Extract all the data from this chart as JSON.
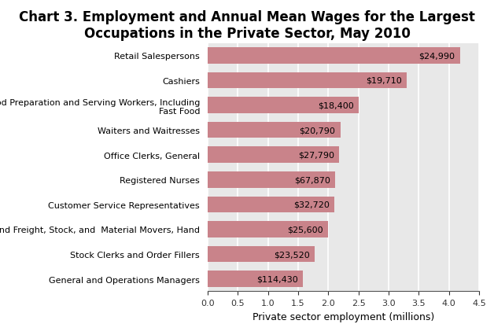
{
  "title": "Chart 3. Employment and Annual Mean Wages for the Largest\nOccupations in the Private Sector, May 2010",
  "categories": [
    "Retail Salespersons",
    "Cashiers",
    "Combined Food Preparation and Serving Workers, Including\nFast Food",
    "Waiters and Waitresses",
    "Office Clerks, General",
    "Registered Nurses",
    "Customer Service Representatives",
    "Laborers and Freight, Stock, and  Material Movers, Hand",
    "Stock Clerks and Order Fillers",
    "General and Operations Managers"
  ],
  "employment": [
    4.18,
    3.3,
    2.5,
    2.2,
    2.18,
    2.12,
    2.1,
    2.0,
    1.78,
    1.58
  ],
  "wages": [
    "$24,990",
    "$19,710",
    "$18,400",
    "$20,790",
    "$27,790",
    "$67,870",
    "$32,720",
    "$25,600",
    "$23,520",
    "$114,430"
  ],
  "bar_color": "#c9838a",
  "xlabel": "Private sector employment (millions)",
  "xlim": [
    0,
    4.5
  ],
  "xticks": [
    0.0,
    0.5,
    1.0,
    1.5,
    2.0,
    2.5,
    3.0,
    3.5,
    4.0,
    4.5
  ],
  "title_fontsize": 12,
  "label_fontsize": 8,
  "wage_fontsize": 8,
  "xlabel_fontsize": 9,
  "tick_fontsize": 8,
  "bg_color": "#e8e8e8",
  "grid_color": "#ffffff",
  "fig_bg": "#ffffff"
}
